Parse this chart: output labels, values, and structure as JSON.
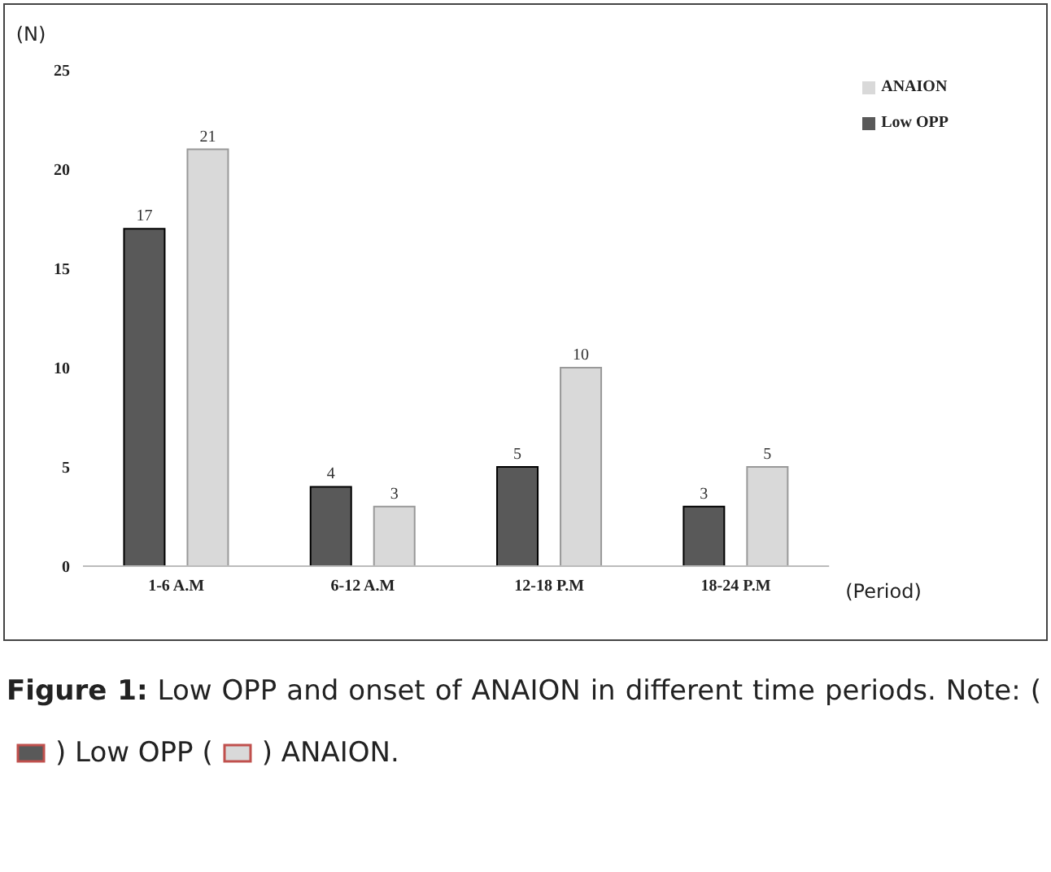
{
  "chart_data": {
    "type": "bar",
    "ylabel": "(N)",
    "xlabel": "(Period)",
    "categories": [
      "1-6 A.M",
      "6-12 A.M",
      "12-18 P.M",
      "18-24 P.M"
    ],
    "series": [
      {
        "name": "Low OPP",
        "color": "#595959",
        "values": [
          17,
          4,
          5,
          3
        ]
      },
      {
        "name": "ANAION",
        "color": "#d9d9d9",
        "values": [
          21,
          3,
          10,
          5
        ]
      }
    ],
    "ylim": [
      0,
      25
    ],
    "yticks": [
      0,
      5,
      10,
      15,
      20,
      25
    ],
    "grid": false,
    "legend": "top right",
    "data_labels": true,
    "annotations": [
      "Figure 1:",
      "Low OPP and onset of ANAION in different time periods. Note: (",
      ") Low OPP (",
      ") ANAION."
    ]
  }
}
